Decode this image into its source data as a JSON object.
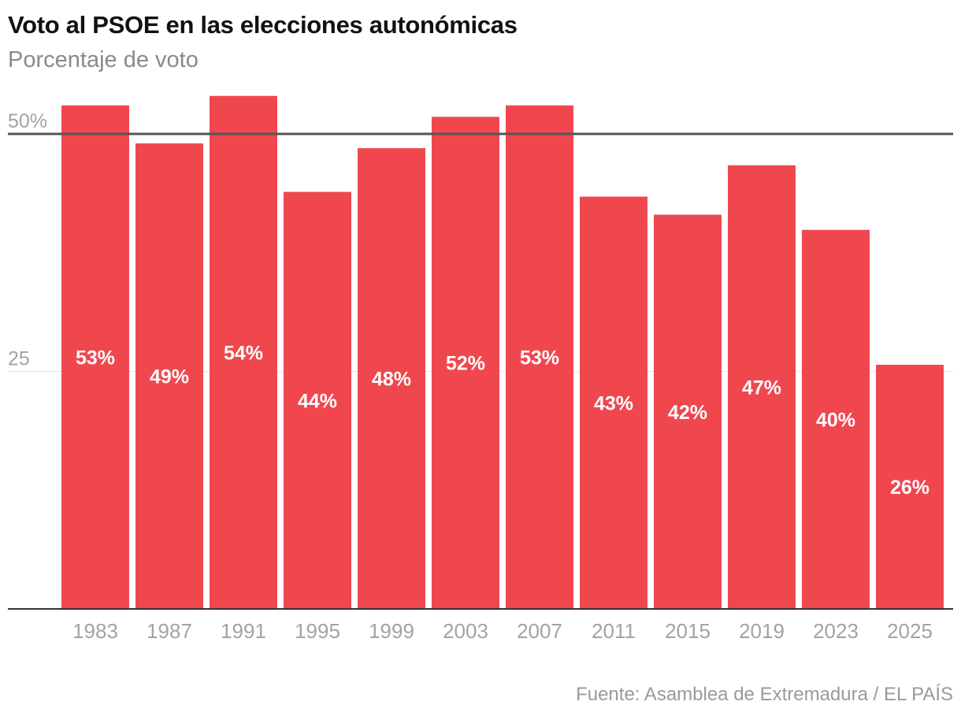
{
  "header": {
    "title": "Voto al PSOE en las elecciones autonómicas",
    "subtitle": "Porcentaje de voto"
  },
  "footer": {
    "source": "Fuente: Asamblea de Extremadura / EL PAÍS"
  },
  "chart_data": {
    "type": "bar",
    "title": "Voto al PSOE en las elecciones autonómicas",
    "subtitle": "Porcentaje de voto",
    "xlabel": "",
    "ylabel": "Porcentaje de voto",
    "categories": [
      "1983",
      "1987",
      "1991",
      "1995",
      "1999",
      "2003",
      "2007",
      "2011",
      "2015",
      "2019",
      "2023",
      "2025"
    ],
    "values": [
      53.0,
      49.0,
      54.0,
      43.9,
      48.5,
      51.8,
      53.0,
      43.4,
      41.5,
      46.7,
      39.9,
      25.7
    ],
    "data_labels": [
      "53%",
      "49%",
      "54%",
      "44%",
      "48%",
      "52%",
      "53%",
      "43%",
      "42%",
      "47%",
      "40%",
      "26%"
    ],
    "ylim": [
      0,
      60
    ],
    "yticks": [
      25,
      50
    ],
    "ytick_labels": [
      "25",
      "50%"
    ],
    "reference_line": 50,
    "grid": true,
    "bar_color": "#f0474f",
    "reference_line_color": "#555555",
    "grid_color": "#e6e6e6",
    "baseline_color": "#333333"
  }
}
